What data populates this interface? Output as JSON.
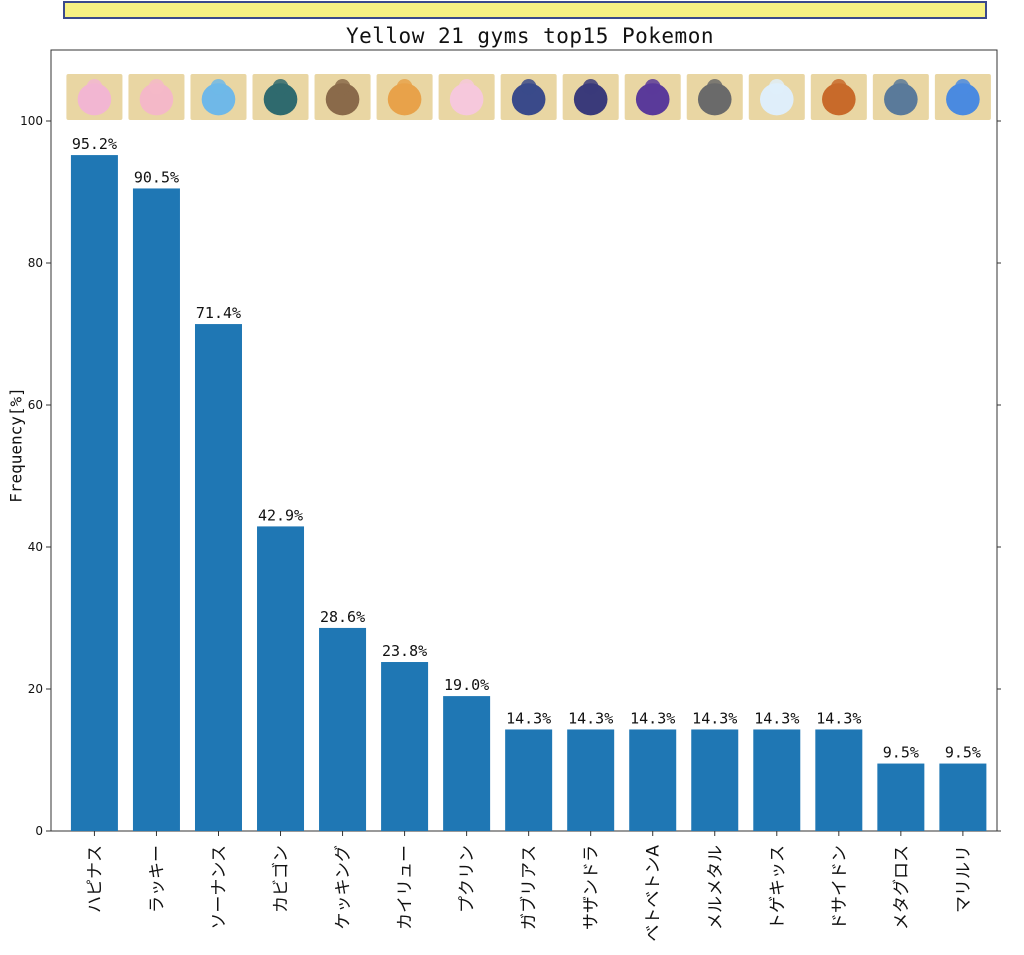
{
  "chart_data": {
    "type": "bar",
    "title": "Yellow 21 gyms top15 Pokemon",
    "ylabel": "Frequency[%]",
    "xlabel": "",
    "ylim": [
      0,
      110
    ],
    "yticks": [
      0,
      20,
      40,
      60,
      80,
      100
    ],
    "grid": false,
    "bar_color": "#1f77b4",
    "categories": [
      "ハピナス",
      "ラッキー",
      "ソーナンス",
      "カビゴン",
      "ケッキング",
      "カイリュー",
      "プクリン",
      "ガブリアス",
      "サザンドラ",
      "ベトベトンA",
      "メルメタル",
      "トゲキッス",
      "ドサイドン",
      "メタグロス",
      "マリルリ"
    ],
    "values": [
      95.2,
      90.5,
      71.4,
      42.9,
      28.6,
      23.8,
      19.0,
      14.3,
      14.3,
      14.3,
      14.3,
      14.3,
      14.3,
      9.5,
      9.5
    ],
    "value_labels": [
      "95.2%",
      "90.5%",
      "71.4%",
      "42.9%",
      "28.6%",
      "23.8%",
      "19.0%",
      "14.3%",
      "14.3%",
      "14.3%",
      "14.3%",
      "14.3%",
      "14.3%",
      "9.5%",
      "9.5%"
    ],
    "image_icons": [
      "blissey-icon",
      "chansey-icon",
      "wobbuffet-icon",
      "snorlax-icon",
      "slaking-icon",
      "dragonite-icon",
      "wigglytuff-icon",
      "garchomp-icon",
      "hydreigon-icon",
      "alolan-muk-icon",
      "melmetal-icon",
      "togekiss-icon",
      "rhyperior-icon",
      "metagross-icon",
      "azumarill-icon"
    ],
    "icon_colors": [
      "#f2b6d2",
      "#f4b8c8",
      "#6fb8e8",
      "#2f6a6e",
      "#8a6a4a",
      "#e8a24a",
      "#f6c8dc",
      "#3a4a8a",
      "#3a3a7a",
      "#5a3a9a",
      "#6a6a6a",
      "#dfeefa",
      "#c86a2a",
      "#5a7a9a",
      "#4a8ae0"
    ]
  }
}
